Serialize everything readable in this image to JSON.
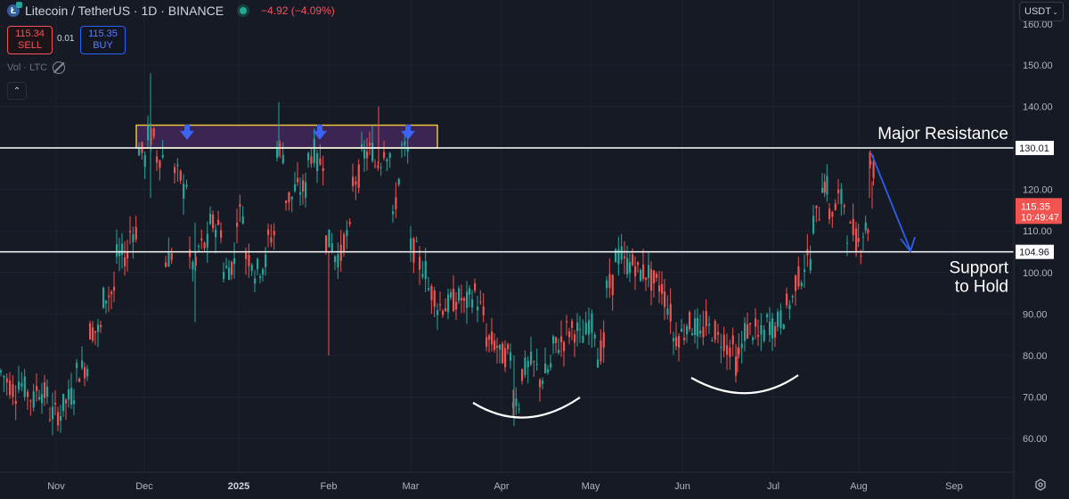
{
  "header": {
    "symbol": "Litecoin / TetherUS · 1D · BINANCE",
    "coin_icon_letter": "Ł",
    "change": "−4.92 (−4.09%)",
    "sell_price": "115.34",
    "sell_label": "SELL",
    "spread": "0.01",
    "buy_price": "115.35",
    "buy_label": "BUY",
    "volume_label": "Vol · LTC",
    "collapse_glyph": "⌃",
    "currency_button": "USDT",
    "currency_chevron": "⌄"
  },
  "colors": {
    "background": "#161a25",
    "grid": "#1f2330",
    "up": "#26a69a",
    "down": "#ef5350",
    "resistance_zone_fill": "#4a2a62",
    "resistance_zone_border": "#e9c23a",
    "arrow_blue": "#3d63f5",
    "level_line": "#ffffff",
    "price_tag": "#f05350"
  },
  "price_axis": {
    "ticks": [
      "150.00",
      "140.00",
      "130.00",
      "120.00",
      "110.00",
      "100.00",
      "90.00",
      "80.00",
      "70.00",
      "60.00"
    ],
    "current_price": "115.35",
    "countdown": "10:49:47",
    "resistance_label": "130.01",
    "support_label": "104.96"
  },
  "time_axis": {
    "ticks": [
      "Nov",
      "Dec",
      "2025",
      "Feb",
      "Mar",
      "Apr",
      "May",
      "Jun",
      "Jul",
      "Aug",
      "Sep"
    ]
  },
  "annotations": {
    "resistance_text": "Major Resistance",
    "support_text_1": "Support",
    "support_text_2": "to Hold"
  },
  "chart_data": {
    "type": "candlestick",
    "title": "Litecoin / TetherUS · 1D · BINANCE",
    "xlabel": "",
    "ylabel": "USDT",
    "ylim": [
      55,
      157
    ],
    "grid": true,
    "x_ticks": [
      "Nov",
      "Dec",
      "2025",
      "Feb",
      "Mar",
      "Apr",
      "May",
      "Jun",
      "Jul",
      "Aug",
      "Sep"
    ],
    "y_ticks": [
      60,
      70,
      80,
      90,
      100,
      110,
      120,
      130,
      140,
      150
    ],
    "last_price": 115.35,
    "change": -4.92,
    "change_pct": -4.09,
    "levels": [
      {
        "name": "Major Resistance",
        "price": 130.01
      },
      {
        "name": "Support to Hold",
        "price": 104.96
      }
    ],
    "resistance_zone": {
      "from_price": 130.01,
      "to_price": 135.5,
      "from": "early Dec 2024",
      "to": "early Mar 2025"
    },
    "rejection_arrows": [
      "mid Dec 2024",
      "late Jan 2025",
      "end Feb 2025"
    ],
    "rounded_bottoms": [
      {
        "period": "Apr 2025",
        "low": 63.0
      },
      {
        "period": "Jun 2025",
        "low": 76.0
      }
    ],
    "projection": {
      "from_price": 130.0,
      "to_price": 105.0,
      "direction": "down"
    },
    "approx_closes": [
      {
        "x": "Nov",
        "close": 72
      },
      {
        "x": "mid-Nov",
        "close": 88
      },
      {
        "x": "late-Nov",
        "close": 110
      },
      {
        "x": "Dec",
        "close": 130
      },
      {
        "x": "mid-Dec",
        "close": 125
      },
      {
        "x": "late-Dec",
        "close": 103
      },
      {
        "x": "2025",
        "close": 112
      },
      {
        "x": "mid-Jan",
        "close": 103
      },
      {
        "x": "Feb",
        "close": 108
      },
      {
        "x": "mid-Feb",
        "close": 125
      },
      {
        "x": "Mar",
        "close": 128
      },
      {
        "x": "mid-Mar",
        "close": 92
      },
      {
        "x": "Apr",
        "close": 78
      },
      {
        "x": "mid-Apr",
        "close": 75
      },
      {
        "x": "May",
        "close": 103
      },
      {
        "x": "mid-May",
        "close": 98
      },
      {
        "x": "Jun",
        "close": 86
      },
      {
        "x": "mid-Jun",
        "close": 88
      },
      {
        "x": "Jul",
        "close": 87
      },
      {
        "x": "mid-Jul",
        "close": 100
      },
      {
        "x": "late-Jul",
        "close": 118
      },
      {
        "x": "Aug",
        "close": 115.35
      }
    ]
  }
}
